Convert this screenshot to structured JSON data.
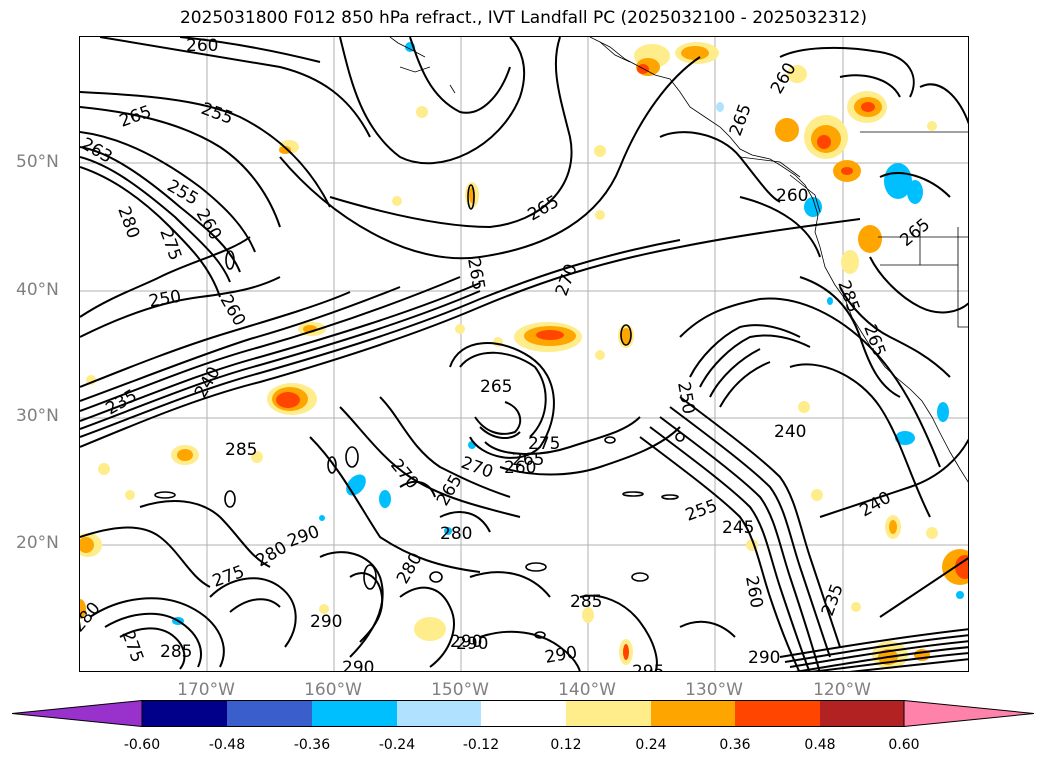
{
  "title": "2025031800 F012 850 hPa refract., IVT Landfall PC (2025032100 - 2025032312)",
  "map": {
    "lat_labels": [
      "50°N",
      "40°N",
      "30°N",
      "20°N"
    ],
    "lon_labels": [
      "170°W",
      "160°W",
      "150°W",
      "140°W",
      "130°W",
      "120°W"
    ],
    "contour_labels": [
      "260",
      "255",
      "265",
      "263",
      "255",
      "280",
      "260",
      "275",
      "250",
      "260",
      "235",
      "240",
      "285",
      "285",
      "290",
      "275",
      "280",
      "290",
      "280",
      "275",
      "270",
      "290",
      "265",
      "260",
      "270",
      "280",
      "265",
      "275",
      "265",
      "280",
      "285",
      "290",
      "290",
      "290",
      "295",
      "290",
      "250",
      "240",
      "255",
      "245",
      "260",
      "240",
      "235",
      "265",
      "265",
      "265",
      "260",
      "260",
      "265",
      "265",
      "270",
      "285"
    ]
  },
  "colorbar": {
    "ticks": [
      "-0.60",
      "-0.48",
      "-0.36",
      "-0.24",
      "-0.12",
      "0.12",
      "0.24",
      "0.36",
      "0.48",
      "0.60"
    ],
    "colors": [
      "#9932cc",
      "#00008b",
      "#3a5fcd",
      "#00bfff",
      "#b0e2ff",
      "#ffffff",
      "#ffec8b",
      "#ffa500",
      "#ff4500",
      "#b22222",
      "#ff82ab"
    ]
  }
}
